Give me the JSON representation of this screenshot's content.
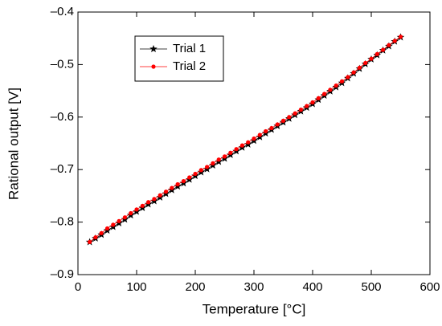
{
  "chart_data": {
    "type": "line",
    "x_label": "Temperature [°C]",
    "y_label": "Rational output [V]",
    "x": [
      20,
      30,
      40,
      50,
      60,
      70,
      80,
      90,
      100,
      110,
      120,
      130,
      140,
      150,
      160,
      170,
      180,
      190,
      200,
      210,
      220,
      230,
      240,
      250,
      260,
      270,
      280,
      290,
      300,
      310,
      320,
      330,
      340,
      350,
      360,
      370,
      380,
      390,
      400,
      410,
      420,
      430,
      440,
      450,
      460,
      470,
      480,
      490,
      500,
      510,
      520,
      530,
      540,
      550
    ],
    "series": [
      {
        "name": "Trial 1",
        "color": "#000000",
        "marker": "star",
        "values": [
          -0.838,
          -0.831,
          -0.824,
          -0.816,
          -0.809,
          -0.802,
          -0.795,
          -0.787,
          -0.78,
          -0.773,
          -0.766,
          -0.76,
          -0.753,
          -0.746,
          -0.739,
          -0.732,
          -0.726,
          -0.719,
          -0.712,
          -0.705,
          -0.699,
          -0.692,
          -0.685,
          -0.679,
          -0.672,
          -0.665,
          -0.658,
          -0.652,
          -0.645,
          -0.638,
          -0.631,
          -0.624,
          -0.617,
          -0.61,
          -0.603,
          -0.596,
          -0.589,
          -0.582,
          -0.575,
          -0.567,
          -0.559,
          -0.551,
          -0.543,
          -0.535,
          -0.526,
          -0.517,
          -0.508,
          -0.499,
          -0.49,
          -0.482,
          -0.473,
          -0.465,
          -0.456,
          -0.448
        ]
      },
      {
        "name": "Trial 2",
        "color": "#ff0000",
        "marker": "circle",
        "values": [
          -0.838,
          -0.829,
          -0.821,
          -0.812,
          -0.805,
          -0.798,
          -0.791,
          -0.783,
          -0.776,
          -0.769,
          -0.762,
          -0.756,
          -0.749,
          -0.742,
          -0.735,
          -0.728,
          -0.722,
          -0.715,
          -0.708,
          -0.701,
          -0.695,
          -0.688,
          -0.681,
          -0.675,
          -0.668,
          -0.661,
          -0.654,
          -0.648,
          -0.641,
          -0.634,
          -0.627,
          -0.621,
          -0.614,
          -0.607,
          -0.6,
          -0.593,
          -0.586,
          -0.579,
          -0.572,
          -0.564,
          -0.556,
          -0.548,
          -0.54,
          -0.532,
          -0.524,
          -0.515,
          -0.506,
          -0.497,
          -0.489,
          -0.48,
          -0.472,
          -0.463,
          -0.455,
          -0.447
        ]
      }
    ],
    "xlim": [
      0,
      600
    ],
    "xticks": [
      0,
      100,
      200,
      300,
      400,
      500,
      600
    ],
    "ylim": [
      -0.9,
      -0.4
    ],
    "yticks": [
      {
        "value": -0.9,
        "label": "–0.9"
      },
      {
        "value": -0.8,
        "label": "–0.8"
      },
      {
        "value": -0.7,
        "label": "–0.7"
      },
      {
        "value": -0.6,
        "label": "–0.6"
      },
      {
        "value": -0.5,
        "label": "–0.5"
      },
      {
        "value": -0.4,
        "label": "–0.4"
      }
    ],
    "grid": false,
    "legend": "upper-left"
  }
}
